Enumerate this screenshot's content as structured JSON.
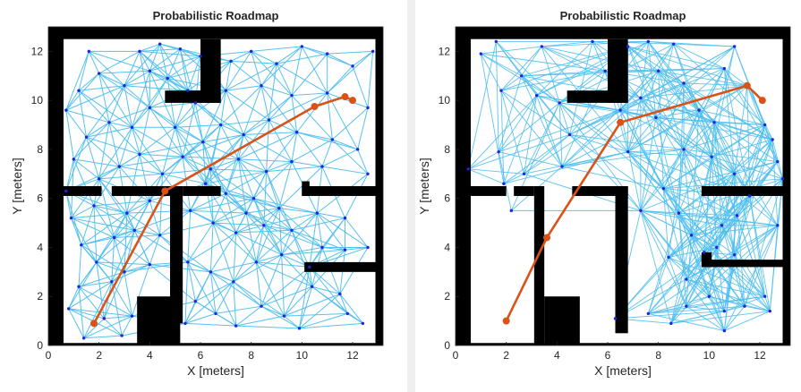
{
  "colors": {
    "edge": "#4DBEEE",
    "node": "#2323d8",
    "path": "#D95319",
    "wall": "#000000",
    "free": "#ffffff"
  },
  "chart_data": [
    {
      "type": "scatter",
      "title": "Probabilistic Roadmap",
      "xlabel": "X [meters]",
      "ylabel": "Y [meters]",
      "xlim": [
        0,
        13.2
      ],
      "ylim": [
        0,
        13
      ],
      "xticks": [
        0,
        2,
        4,
        6,
        8,
        10,
        12
      ],
      "yticks": [
        0,
        2,
        4,
        6,
        8,
        10,
        12
      ],
      "path": [
        [
          1.8,
          0.9
        ],
        [
          4.6,
          6.3
        ],
        [
          10.5,
          9.75
        ],
        [
          11.7,
          10.15
        ],
        [
          12.0,
          10.0
        ]
      ],
      "nodes": [
        [
          1.4,
          0.3
        ],
        [
          2.2,
          1.1
        ],
        [
          2.9,
          0.4
        ],
        [
          3.3,
          1.2
        ],
        [
          2.5,
          2.6
        ],
        [
          1.2,
          2.4
        ],
        [
          0.8,
          1.5
        ],
        [
          1.9,
          3.4
        ],
        [
          3.0,
          3.0
        ],
        [
          1.3,
          4.1
        ],
        [
          2.6,
          4.4
        ],
        [
          3.4,
          4.7
        ],
        [
          0.9,
          5.2
        ],
        [
          1.8,
          5.7
        ],
        [
          3.1,
          5.4
        ],
        [
          4.0,
          5.9
        ],
        [
          4.4,
          4.5
        ],
        [
          4.0,
          3.3
        ],
        [
          0.7,
          6.3
        ],
        [
          2.0,
          6.8
        ],
        [
          2.8,
          7.3
        ],
        [
          1.0,
          7.6
        ],
        [
          3.6,
          7.8
        ],
        [
          4.5,
          7.0
        ],
        [
          5.3,
          7.7
        ],
        [
          6.1,
          8.3
        ],
        [
          1.5,
          8.5
        ],
        [
          2.4,
          9.1
        ],
        [
          3.3,
          8.9
        ],
        [
          4.0,
          9.7
        ],
        [
          5.0,
          8.9
        ],
        [
          0.7,
          9.6
        ],
        [
          1.2,
          10.4
        ],
        [
          2.0,
          11.1
        ],
        [
          3.0,
          10.6
        ],
        [
          4.0,
          11.2
        ],
        [
          5.2,
          12.1
        ],
        [
          4.4,
          12.3
        ],
        [
          6.0,
          11.8
        ],
        [
          5.5,
          10.4
        ],
        [
          7.2,
          11.6
        ],
        [
          8.0,
          12.0
        ],
        [
          9.0,
          11.5
        ],
        [
          10.0,
          12.2
        ],
        [
          11.0,
          11.9
        ],
        [
          12.0,
          11.4
        ],
        [
          12.8,
          12.0
        ],
        [
          7.0,
          10.4
        ],
        [
          8.4,
          10.6
        ],
        [
          9.6,
          10.2
        ],
        [
          11.0,
          10.3
        ],
        [
          12.6,
          9.7
        ],
        [
          6.8,
          9.0
        ],
        [
          7.7,
          8.6
        ],
        [
          8.7,
          9.2
        ],
        [
          9.8,
          8.7
        ],
        [
          11.2,
          8.4
        ],
        [
          12.2,
          8.0
        ],
        [
          6.4,
          7.2
        ],
        [
          7.5,
          7.6
        ],
        [
          8.6,
          7.1
        ],
        [
          9.6,
          7.5
        ],
        [
          10.8,
          7.3
        ],
        [
          12.6,
          7.0
        ],
        [
          7.0,
          6.2
        ],
        [
          8.1,
          6.0
        ],
        [
          9.1,
          5.6
        ],
        [
          5.6,
          5.5
        ],
        [
          6.5,
          5.0
        ],
        [
          7.4,
          4.6
        ],
        [
          8.5,
          4.9
        ],
        [
          9.6,
          4.7
        ],
        [
          10.6,
          5.4
        ],
        [
          11.7,
          5.2
        ],
        [
          12.6,
          4.0
        ],
        [
          10.8,
          4.0
        ],
        [
          11.7,
          3.9
        ],
        [
          5.5,
          3.4
        ],
        [
          6.4,
          3.0
        ],
        [
          7.3,
          2.6
        ],
        [
          8.2,
          3.4
        ],
        [
          9.2,
          3.7
        ],
        [
          10.3,
          3.2
        ],
        [
          5.8,
          1.8
        ],
        [
          6.6,
          1.3
        ],
        [
          7.4,
          0.8
        ],
        [
          8.4,
          1.6
        ],
        [
          9.3,
          1.2
        ],
        [
          10.4,
          2.4
        ],
        [
          11.5,
          2.1
        ],
        [
          12.4,
          0.9
        ],
        [
          5.4,
          0.9
        ],
        [
          9.9,
          0.7
        ],
        [
          11.8,
          1.3
        ],
        [
          6.2,
          6.6
        ],
        [
          5.8,
          9.9
        ],
        [
          4.7,
          10.9
        ],
        [
          3.6,
          12.0
        ],
        [
          1.6,
          12.0
        ],
        [
          7.8,
          5.4
        ]
      ]
    },
    {
      "type": "scatter",
      "title": "Probabilistic Roadmap",
      "xlabel": "X [meters]",
      "ylabel": "Y [meters]",
      "xlim": [
        0,
        13.2
      ],
      "ylim": [
        0,
        13
      ],
      "xticks": [
        0,
        2,
        4,
        6,
        8,
        10,
        12
      ],
      "yticks": [
        0,
        2,
        4,
        6,
        8,
        10,
        12
      ],
      "path": [
        [
          2.0,
          1.0
        ],
        [
          3.6,
          4.4
        ],
        [
          6.5,
          9.1
        ],
        [
          11.5,
          10.6
        ],
        [
          12.1,
          10.0
        ]
      ],
      "nodes": [
        [
          0.5,
          7.2
        ],
        [
          1.0,
          11.9
        ],
        [
          1.6,
          12.4
        ],
        [
          1.8,
          10.4
        ],
        [
          1.7,
          7.9
        ],
        [
          1.9,
          6.6
        ],
        [
          2.2,
          5.5
        ],
        [
          2.7,
          7.0
        ],
        [
          2.6,
          11.0
        ],
        [
          3.2,
          10.2
        ],
        [
          3.4,
          12.2
        ],
        [
          4.1,
          9.9
        ],
        [
          4.5,
          8.6
        ],
        [
          4.2,
          7.3
        ],
        [
          5.4,
          12.4
        ],
        [
          5.9,
          11.2
        ],
        [
          6.5,
          9.6
        ],
        [
          7.3,
          10.1
        ],
        [
          6.8,
          12.2
        ],
        [
          7.6,
          12.4
        ],
        [
          8.0,
          11.2
        ],
        [
          8.6,
          12.3
        ],
        [
          9.0,
          10.7
        ],
        [
          9.6,
          9.6
        ],
        [
          10.2,
          9.1
        ],
        [
          10.6,
          11.3
        ],
        [
          11.0,
          12.2
        ],
        [
          11.5,
          10.6
        ],
        [
          12.2,
          9.0
        ],
        [
          12.5,
          8.4
        ],
        [
          12.7,
          7.5
        ],
        [
          12.9,
          6.8
        ],
        [
          9.0,
          8.0
        ],
        [
          10.1,
          7.7
        ],
        [
          11.0,
          7.0
        ],
        [
          8.2,
          6.4
        ],
        [
          8.8,
          5.4
        ],
        [
          9.3,
          4.5
        ],
        [
          9.8,
          3.8
        ],
        [
          10.5,
          4.9
        ],
        [
          11.1,
          5.3
        ],
        [
          12.7,
          4.9
        ],
        [
          10.3,
          4.0
        ],
        [
          11.0,
          3.7
        ],
        [
          8.4,
          3.6
        ],
        [
          9.1,
          2.7
        ],
        [
          10.0,
          2.0
        ],
        [
          10.6,
          1.4
        ],
        [
          11.4,
          1.6
        ],
        [
          12.2,
          2.0
        ],
        [
          12.4,
          1.4
        ],
        [
          9.1,
          1.6
        ],
        [
          8.5,
          0.9
        ],
        [
          7.6,
          1.3
        ],
        [
          6.3,
          1.1
        ],
        [
          10.6,
          0.6
        ],
        [
          7.3,
          5.5
        ],
        [
          6.8,
          7.9
        ],
        [
          7.9,
          9.3
        ],
        [
          11.6,
          6.1
        ]
      ]
    }
  ]
}
